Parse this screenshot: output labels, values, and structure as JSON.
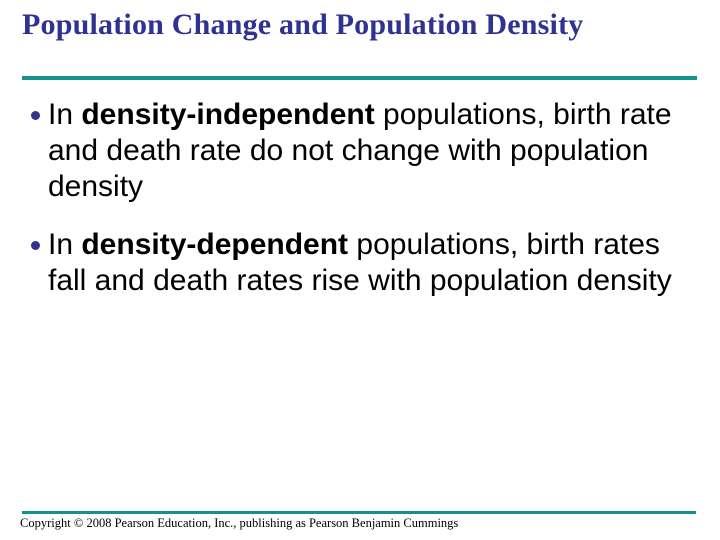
{
  "slide": {
    "title": "Population Change and Population Density",
    "footer": "Copyright © 2008 Pearson Education, Inc., publishing as Pearson Benjamin Cummings"
  },
  "colors": {
    "title_navy": "#2F3193",
    "teal_rule": "#13948B",
    "bullet_dot_navy": "#32328F",
    "body_text": "#000000"
  },
  "bullets": [
    {
      "segments": [
        {
          "text": "In ",
          "bold": false
        },
        {
          "text": "density-independent",
          "bold": true
        },
        {
          "text": " populations, birth rate and death rate do not change with population density",
          "bold": false
        }
      ]
    },
    {
      "segments": [
        {
          "text": "In ",
          "bold": false
        },
        {
          "text": "density-dependent",
          "bold": true
        },
        {
          "text": " populations, birth rates fall and death rates rise with population density",
          "bold": false
        }
      ]
    }
  ]
}
